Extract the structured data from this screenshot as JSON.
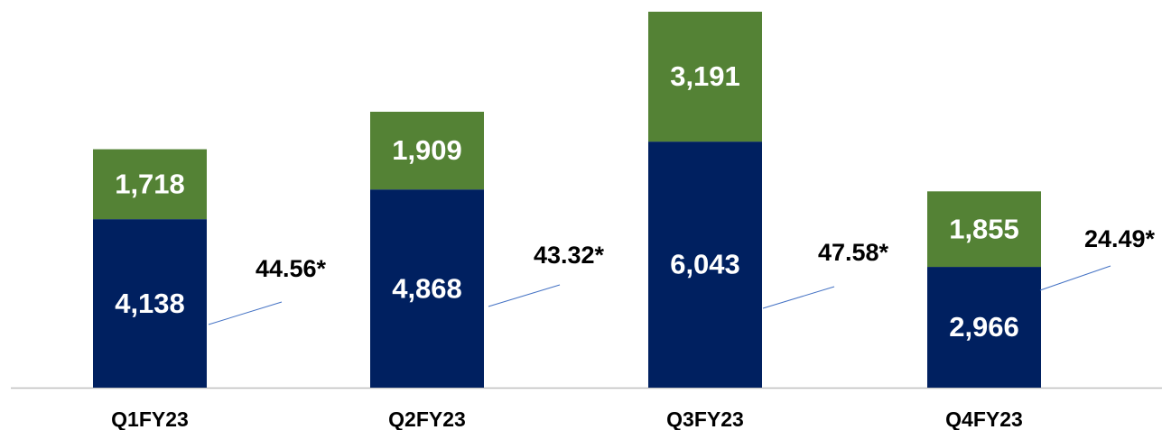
{
  "chart_data": {
    "type": "stacked_bar",
    "categories": [
      "Q1FY23",
      "Q2FY23",
      "Q3FY23",
      "Q4FY23"
    ],
    "series": [
      {
        "color": "#002060",
        "values": [
          4138,
          4868,
          6043,
          2966
        ],
        "value_labels": [
          "4,138",
          "4,868",
          "6,043",
          "2,966"
        ]
      },
      {
        "color": "#548235",
        "values": [
          1718,
          1909,
          3191,
          1855
        ],
        "value_labels": [
          "1,718",
          "1,909",
          "3,191",
          "1,855"
        ]
      }
    ],
    "annotations": [
      "44.56*",
      "43.32*",
      "47.58*",
      "24.49*"
    ]
  }
}
